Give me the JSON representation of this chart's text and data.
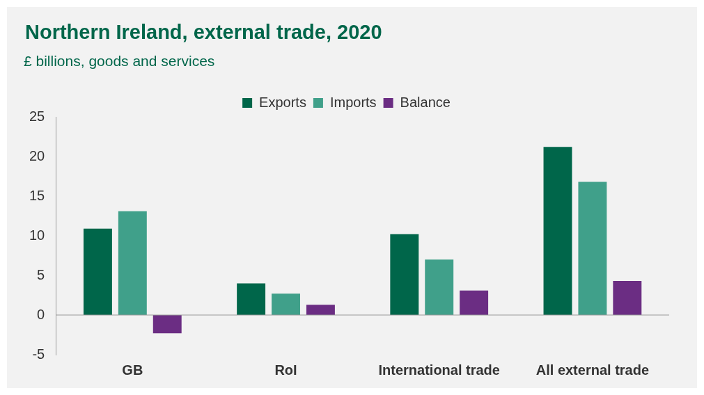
{
  "chart_data": {
    "type": "bar",
    "title": "Northern Ireland, external trade, 2020",
    "subtitle": "£ billions, goods and services",
    "categories": [
      "GB",
      "RoI",
      "International trade",
      "All external trade"
    ],
    "series": [
      {
        "name": "Exports",
        "color": "#00664a",
        "values": [
          10.9,
          4.0,
          10.2,
          21.2
        ]
      },
      {
        "name": "Imports",
        "color": "#40a08a",
        "values": [
          13.1,
          2.7,
          7.0,
          16.8
        ]
      },
      {
        "name": "Balance",
        "color": "#6b2d83",
        "values": [
          -2.3,
          1.3,
          3.1,
          4.3
        ]
      }
    ],
    "ref_lines": [
      {
        "axis": "y",
        "value": 0,
        "color": "#9a9a9a"
      }
    ],
    "ylim": [
      -5,
      25
    ],
    "yticks": [
      -5,
      0,
      5,
      10,
      15,
      20,
      25
    ],
    "grid": false,
    "legend": "top"
  }
}
